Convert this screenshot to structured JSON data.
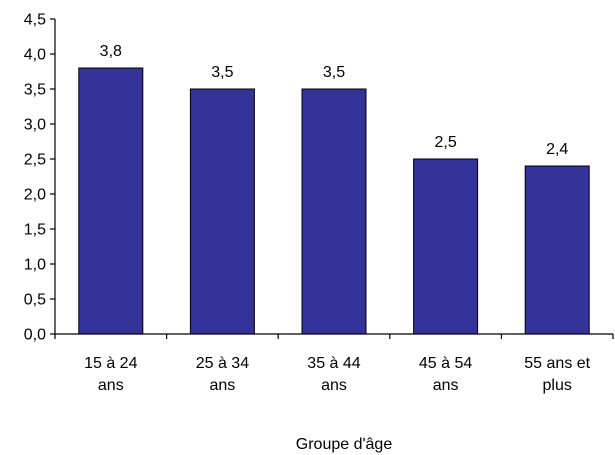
{
  "chart_data": {
    "type": "bar",
    "title": "",
    "xlabel": "Groupe d'âge",
    "ylabel": "",
    "categories": [
      [
        "15 à 24",
        "ans"
      ],
      [
        "25 à 34",
        "ans"
      ],
      [
        "35 à 44",
        "ans"
      ],
      [
        "45 à 54",
        "ans"
      ],
      [
        "55 ans et",
        "plus"
      ]
    ],
    "values": [
      3.8,
      3.5,
      3.5,
      2.5,
      2.4
    ],
    "value_labels": [
      "3,8",
      "3,5",
      "3,5",
      "2,5",
      "2,4"
    ],
    "ylim": [
      0,
      4.5
    ],
    "yticks": [
      "0,0",
      "0,5",
      "1,0",
      "1,5",
      "2,0",
      "2,5",
      "3,0",
      "3,5",
      "4,0",
      "4,5"
    ],
    "grid": false,
    "legend": "none",
    "colors": {
      "bar": "#333399",
      "bar_edge": "#000000",
      "axis": "#000000"
    }
  }
}
